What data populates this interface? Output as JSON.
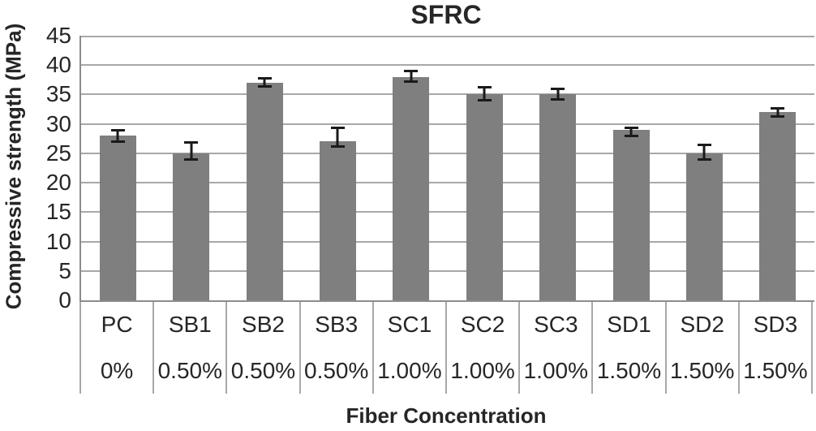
{
  "chart_data": {
    "type": "bar",
    "title": "SFRC",
    "xlabel": "Fiber Concentration",
    "ylabel": "Compressive strength (MPa)",
    "ylim": [
      0,
      45
    ],
    "ytick_step": 5,
    "yticks": [
      0,
      5,
      10,
      15,
      20,
      25,
      30,
      35,
      40,
      45
    ],
    "grid": "horizontal",
    "legend": "none",
    "categories": [
      "PC",
      "SB1",
      "SB2",
      "SB3",
      "SC1",
      "SC2",
      "SC3",
      "SD1",
      "SD2",
      "SD3"
    ],
    "fiber_percents": [
      "0%",
      "0.50%",
      "0.50%",
      "0.50%",
      "1.00%",
      "1.00%",
      "1.00%",
      "1.50%",
      "1.50%",
      "1.50%"
    ],
    "series": [
      {
        "name": "Compressive strength (MPa)",
        "values": [
          28,
          25,
          37,
          27,
          38,
          35,
          35,
          29,
          25,
          32
        ],
        "error_up": [
          1.1,
          2.1,
          0.9,
          2.6,
          1.2,
          1.4,
          1.2,
          0.6,
          1.6,
          0.8
        ],
        "error_down": [
          1.2,
          1.2,
          0.9,
          1.0,
          1.0,
          1.2,
          1.1,
          1.2,
          1.2,
          1.0
        ]
      }
    ],
    "colors": {
      "bar_fill": "#7f7f7f",
      "gridline": "#a8a8a8",
      "axis_line": "#8c8c8c",
      "error_bar": "#1a1a1a",
      "text": "#262626",
      "background": "#ffffff"
    }
  }
}
